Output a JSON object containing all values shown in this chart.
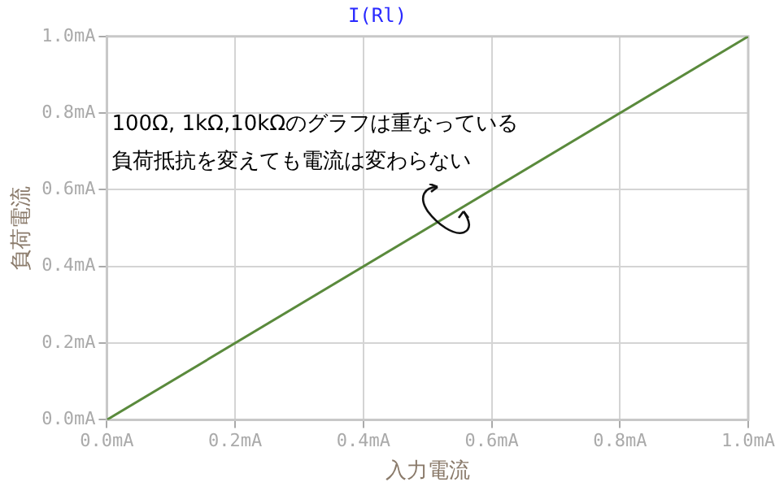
{
  "chart_data": {
    "type": "line",
    "title": "I(Rl)",
    "xlabel": "入力電流",
    "ylabel": "負荷電流",
    "annotations": [
      "100Ω, 1kΩ,10kΩのグラフは重なっている",
      "負荷抵抗を変えても電流は変わらない"
    ],
    "x": [
      0,
      1
    ],
    "series": [
      {
        "color": "#5a8a3c",
        "values": [
          0,
          1
        ]
      }
    ],
    "xlim": [
      0,
      1
    ],
    "ylim": [
      0,
      1
    ],
    "xticks": [
      {
        "value": 0,
        "label": "0.0mA"
      },
      {
        "value": 0.2,
        "label": "0.2mA"
      },
      {
        "value": 0.4,
        "label": "0.4mA"
      },
      {
        "value": 0.6,
        "label": "0.6mA"
      },
      {
        "value": 0.8,
        "label": "0.8mA"
      },
      {
        "value": 1,
        "label": "1.0mA"
      }
    ],
    "yticks": [
      {
        "value": 0,
        "label": "0.0mA"
      },
      {
        "value": 0.2,
        "label": "0.2mA"
      },
      {
        "value": 0.4,
        "label": "0.4mA"
      },
      {
        "value": 0.6,
        "label": "0.6mA"
      },
      {
        "value": 0.8,
        "label": "0.8mA"
      },
      {
        "value": 1,
        "label": "1.0mA"
      }
    ],
    "grid": true,
    "legend": false,
    "marker": "none",
    "line_style": "solid"
  }
}
